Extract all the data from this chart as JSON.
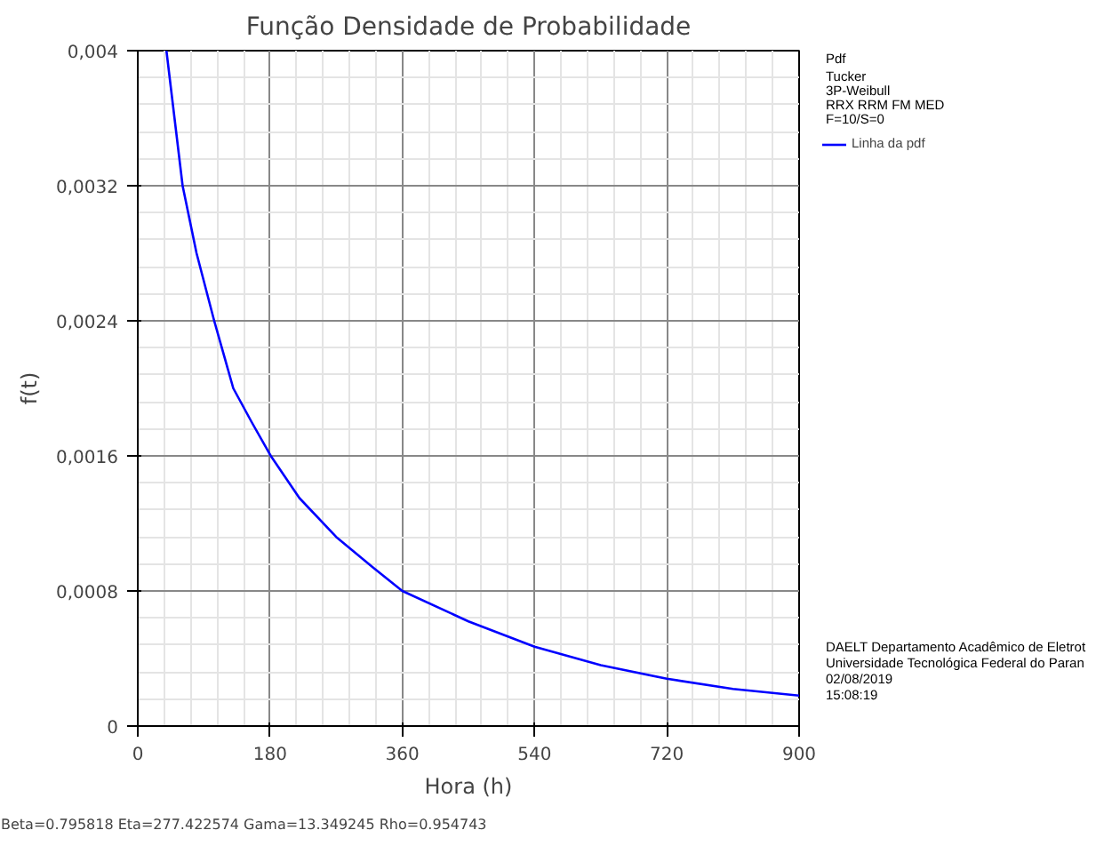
{
  "chart_data": {
    "type": "line",
    "title": "Função Densidade de Probabilidade",
    "xlabel": "Hora (h)",
    "ylabel": "f(t)",
    "x": [
      39,
      50,
      61,
      80,
      104,
      130,
      155,
      181,
      220,
      270,
      320,
      360,
      450,
      540,
      630,
      720,
      810,
      900
    ],
    "series": [
      {
        "name": "Linha da pdf",
        "color": "#0000ff",
        "values": [
          0.004,
          0.0036,
          0.0032,
          0.0028,
          0.0024,
          0.002,
          0.0018,
          0.0016,
          0.00135,
          0.00112,
          0.00094,
          0.0008,
          0.00062,
          0.00047,
          0.00036,
          0.00028,
          0.00022,
          0.00018
        ]
      }
    ],
    "xlim": [
      0,
      900
    ],
    "xticks": [
      0,
      180,
      360,
      540,
      720,
      900
    ],
    "ylim": [
      0,
      0.004
    ],
    "yticks": [
      {
        "value": 0,
        "label": "0"
      },
      {
        "value": 0.0008,
        "label": "0,0008"
      },
      {
        "value": 0.0016,
        "label": "0,0016"
      },
      {
        "value": 0.0024,
        "label": "0,0024"
      },
      {
        "value": 0.0032,
        "label": "0,0032"
      },
      {
        "value": 0.004,
        "label": "0,004"
      }
    ],
    "grid": true,
    "legend": "right",
    "legend_title": "Pdf",
    "line_style": "solid",
    "annotations": [
      "Tucker",
      "3P-Weibull",
      "RRX RRM FM MED",
      "F=10/S=0",
      "DAELT Departamento Acadêmico de Eletrot",
      "Universidade Tecnológica Federal do Paran",
      "02/08/2019",
      "15:08:19",
      "Beta=0.795818  Eta=277.422574  Gama=13.349245  Rho=0.954743"
    ]
  }
}
